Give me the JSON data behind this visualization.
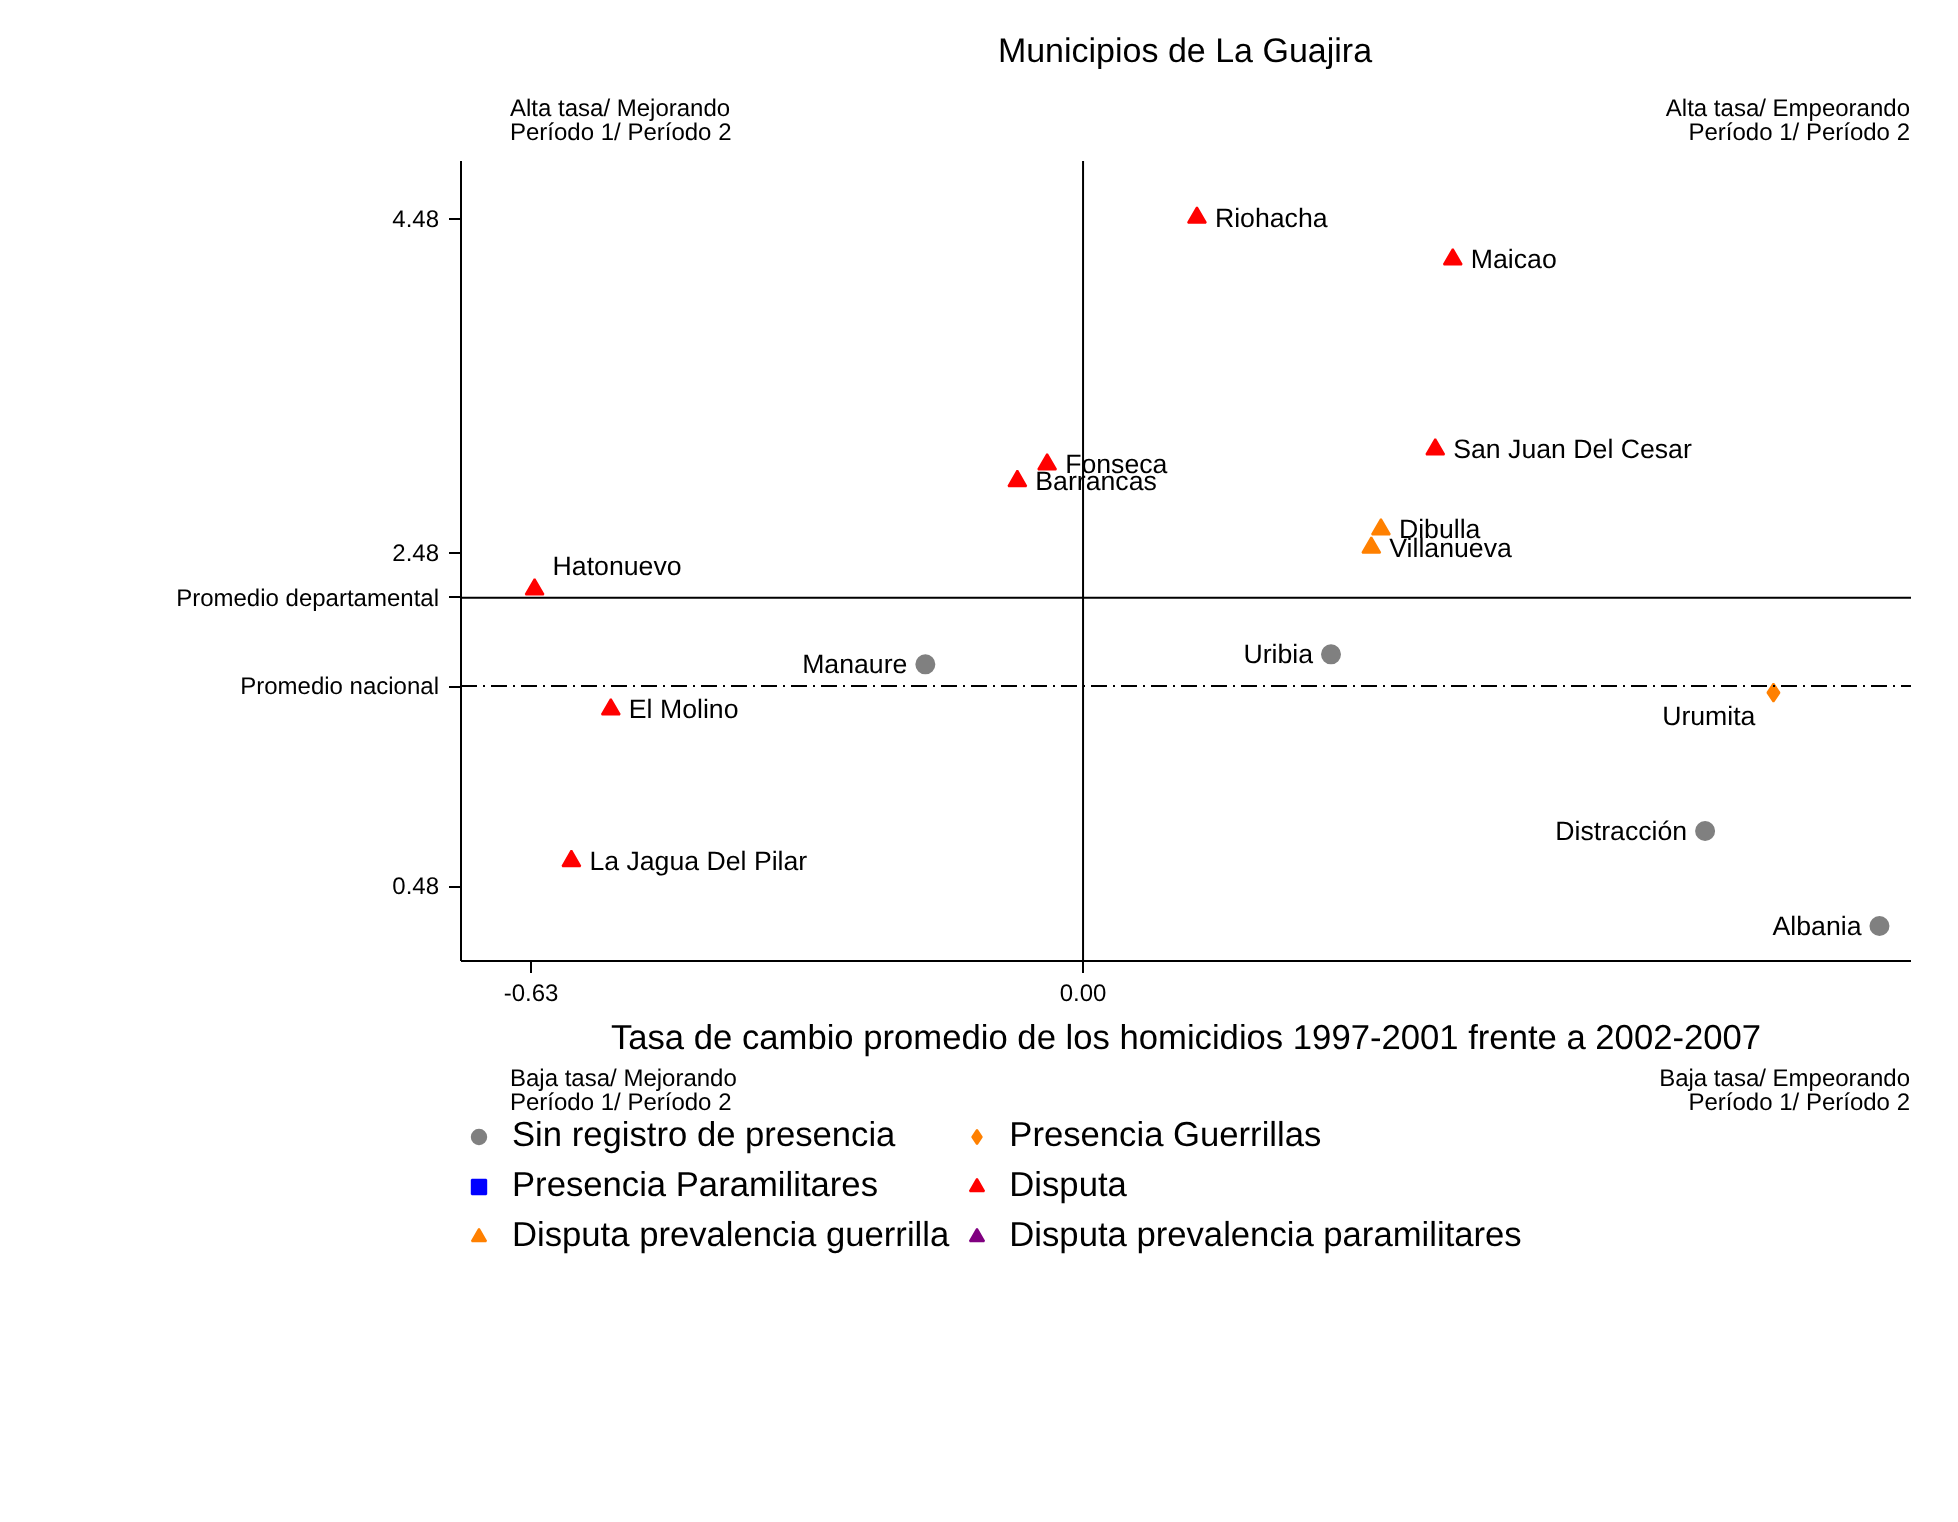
{
  "chart_data": {
    "type": "scatter",
    "title": "Municipios de La Guajira",
    "xlabel": "Tasa de cambio promedio de los homicidios 1997-2001 frente a 2002-2007",
    "xlim": [
      -0.71,
      0.945
    ],
    "ylim": [
      0.03,
      4.83
    ],
    "xticks": [
      {
        "value": -0.63,
        "label": "-0.63"
      },
      {
        "value": 0,
        "label": "0.00"
      }
    ],
    "yticks": [
      0.48,
      2.48,
      4.48
    ],
    "grid": false,
    "legend": "bottom",
    "series": [
      {
        "name": "Sin registro de presencia",
        "color": "#808080",
        "marker": "circle",
        "x": [
          -0.18,
          0.283,
          0.71,
          0.909
        ],
        "values": [
          1.81,
          1.87,
          0.81,
          0.24
        ]
      },
      {
        "name": "Presencia Paramilitares",
        "color": "#0000ff",
        "marker": "square"
      },
      {
        "name": "Disputa prevalencia guerrilla",
        "color": "#ff8000",
        "marker": "triangle",
        "x": [
          0.34,
          0.329
        ],
        "values": [
          2.62,
          2.51
        ]
      },
      {
        "name": "Presencia Guerrillas",
        "color": "#ff8000",
        "marker": "diamond",
        "x": [
          0.788
        ],
        "values": [
          1.64
        ]
      },
      {
        "name": "Disputa",
        "color": "#ff0000",
        "marker": "triangle",
        "x": [
          0.13,
          0.422,
          0.402,
          -0.041,
          -0.075,
          -0.626,
          -0.539,
          -0.584
        ],
        "values": [
          4.49,
          4.24,
          3.1,
          3.01,
          2.91,
          2.26,
          1.54,
          0.63
        ]
      },
      {
        "name": "Disputa prevalencia paramilitares",
        "color": "#800080",
        "marker": "triangle"
      }
    ],
    "ref_lines": [
      {
        "axis": "x",
        "value": 0,
        "label": null,
        "line_style": "solid"
      },
      {
        "axis": "y",
        "value": 2.21,
        "label": "Promedio departamental",
        "line_style": "solid"
      },
      {
        "axis": "y",
        "value": 1.68,
        "label": "Promedio nacional",
        "line_style": "dashdot"
      }
    ],
    "annotations": [
      "Alta tasa/ Mejorando\nPeríodo 1/ Período 2",
      "Alta tasa/ Empeorando\nPeríodo 1/ Período 2",
      "Baja tasa/ Mejorando\nPeríodo 1/ Período 2",
      "Baja tasa/ Empeorando\nPeríodo 1/ Período 2",
      {
        "text": "Riohacha",
        "x": 0.13,
        "y": 4.49
      },
      {
        "text": "Maicao",
        "x": 0.422,
        "y": 4.24
      },
      {
        "text": "San Juan Del Cesar",
        "x": 0.402,
        "y": 3.1
      },
      {
        "text": "Fonseca",
        "x": -0.041,
        "y": 3.01
      },
      {
        "text": "Barrancas",
        "x": -0.075,
        "y": 2.91
      },
      {
        "text": "Dibulla",
        "x": 0.34,
        "y": 2.62
      },
      {
        "text": "Villanueva",
        "x": 0.329,
        "y": 2.51
      },
      {
        "text": "Hatonuevo",
        "x": -0.626,
        "y": 2.26
      },
      {
        "text": "Manaure",
        "x": -0.18,
        "y": 1.81
      },
      {
        "text": "Uribia",
        "x": 0.283,
        "y": 1.87
      },
      {
        "text": "Urumita",
        "x": 0.788,
        "y": 1.64
      },
      {
        "text": "El Molino",
        "x": -0.539,
        "y": 1.54
      },
      {
        "text": "Distracción",
        "x": 0.71,
        "y": 0.81
      },
      {
        "text": "La Jagua Del Pilar",
        "x": -0.584,
        "y": 0.63
      },
      {
        "text": "Albania",
        "x": 0.909,
        "y": 0.24
      }
    ]
  }
}
